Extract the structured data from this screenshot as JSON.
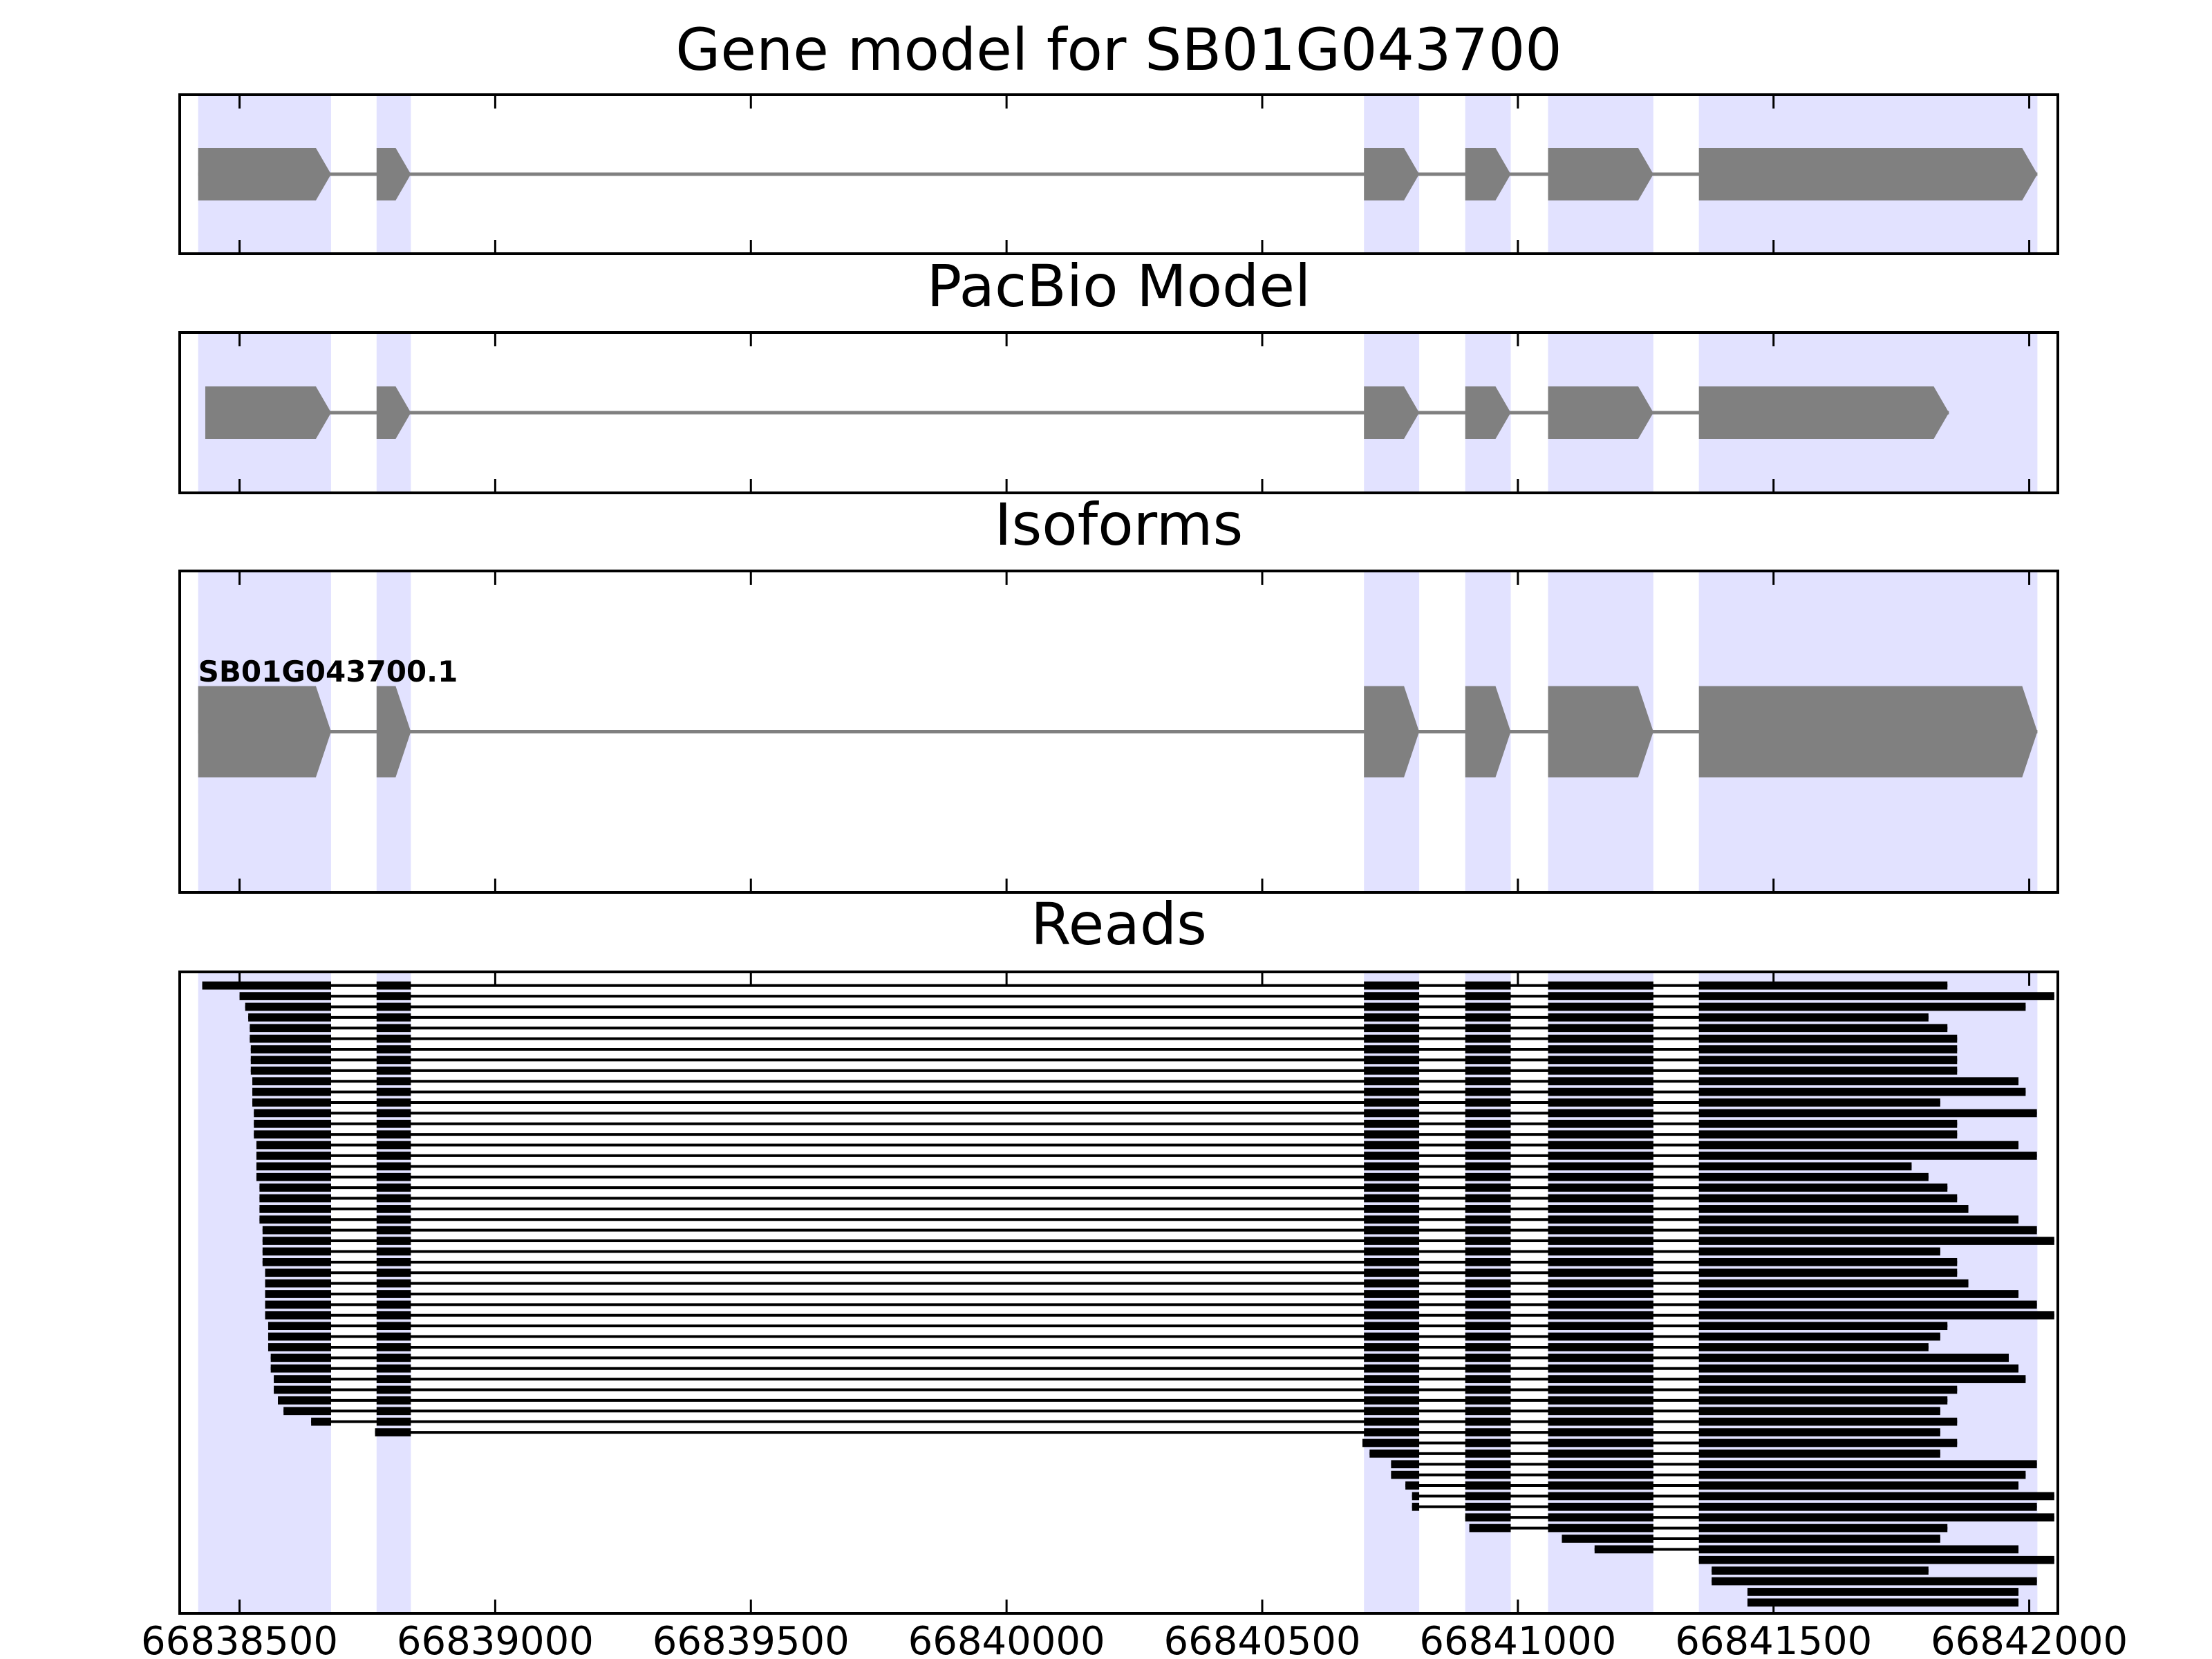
{
  "chart_data": [
    {
      "type": "gene-model",
      "title": "Gene model for SB01G043700",
      "color": "#808080",
      "exons": [
        [
          66838419,
          66838679
        ],
        [
          66838768,
          66838835
        ],
        [
          66840699,
          66840807
        ],
        [
          66840897,
          66840986
        ],
        [
          66841059,
          66841265
        ],
        [
          66841354,
          66842016
        ]
      ],
      "xlim": [
        66838383,
        66842056
      ],
      "xticks": [
        66838500,
        66839000,
        66839500,
        66840000,
        66840500,
        66841000,
        66841500,
        66842000
      ]
    },
    {
      "type": "gene-model",
      "title": "PacBio Model",
      "color": "#808080",
      "exons": [
        [
          66838433,
          66838679
        ],
        [
          66838768,
          66838835
        ],
        [
          66840699,
          66840807
        ],
        [
          66840897,
          66840986
        ],
        [
          66841059,
          66841265
        ],
        [
          66841354,
          66841843
        ]
      ],
      "xlim": [
        66838383,
        66842056
      ],
      "xticks": [
        66838500,
        66839000,
        66839500,
        66840000,
        66840500,
        66841000,
        66841500,
        66842000
      ]
    },
    {
      "type": "isoforms",
      "title": "Isoforms",
      "color": "#808080",
      "isoforms": [
        {
          "name": "SB01G043700.1",
          "exons": [
            [
              66838419,
              66838679
            ],
            [
              66838768,
              66838835
            ],
            [
              66840699,
              66840807
            ],
            [
              66840897,
              66840986
            ],
            [
              66841059,
              66841265
            ],
            [
              66841354,
              66842016
            ]
          ]
        }
      ],
      "xlim": [
        66838383,
        66842056
      ],
      "xticks": [
        66838500,
        66839000,
        66839500,
        66840000,
        66840500,
        66841000,
        66841500,
        66842000
      ]
    },
    {
      "type": "reads",
      "title": "Reads",
      "color": "#000000",
      "reads": [
        [
          66838427,
          66841840
        ],
        [
          66838500,
          66842049
        ],
        [
          66838511,
          66841993
        ],
        [
          66838517,
          66841803
        ],
        [
          66838520,
          66841840
        ],
        [
          66838520,
          66841859
        ],
        [
          66838522,
          66841859
        ],
        [
          66838522,
          66841859
        ],
        [
          66838522,
          66841859
        ],
        [
          66838525,
          66841979
        ],
        [
          66838525,
          66841993
        ],
        [
          66838525,
          66841826
        ],
        [
          66838528,
          66842015
        ],
        [
          66838528,
          66841859
        ],
        [
          66838528,
          66841859
        ],
        [
          66838533,
          66841979
        ],
        [
          66838533,
          66842015
        ],
        [
          66838533,
          66841770
        ],
        [
          66838533,
          66841803
        ],
        [
          66838539,
          66841840
        ],
        [
          66838539,
          66841859
        ],
        [
          66838539,
          66841881
        ],
        [
          66838539,
          66841979
        ],
        [
          66838545,
          66842015
        ],
        [
          66838545,
          66842049
        ],
        [
          66838545,
          66841826
        ],
        [
          66838545,
          66841859
        ],
        [
          66838550,
          66841859
        ],
        [
          66838550,
          66841881
        ],
        [
          66838550,
          66841979
        ],
        [
          66838550,
          66842015
        ],
        [
          66838550,
          66842049
        ],
        [
          66838556,
          66841840
        ],
        [
          66838556,
          66841826
        ],
        [
          66838556,
          66841803
        ],
        [
          66838561,
          66841960
        ],
        [
          66838561,
          66841979
        ],
        [
          66838567,
          66841993
        ],
        [
          66838567,
          66841859
        ],
        [
          66838575,
          66841840
        ],
        [
          66838586,
          66841826
        ],
        [
          66838640,
          66841859
        ],
        [
          66838765,
          66841826
        ],
        [
          66840696,
          66841859
        ],
        [
          66840710,
          66841826
        ],
        [
          66840752,
          66842015
        ],
        [
          66840752,
          66841993
        ],
        [
          66840780,
          66841979
        ],
        [
          66840793,
          66842049
        ],
        [
          66840793,
          66842015
        ],
        [
          66840897,
          66842049
        ],
        [
          66840905,
          66841840
        ],
        [
          66841086,
          66841826
        ],
        [
          66841150,
          66841979
        ],
        [
          66841354,
          66842049
        ],
        [
          66841379,
          66841803
        ],
        [
          66841379,
          66842015
        ],
        [
          66841449,
          66841979
        ],
        [
          66841449,
          66841979
        ]
      ],
      "xlim": [
        66838383,
        66842056
      ],
      "xticks": [
        66838500,
        66839000,
        66839500,
        66840000,
        66840500,
        66841000,
        66841500,
        66842000
      ]
    }
  ]
}
